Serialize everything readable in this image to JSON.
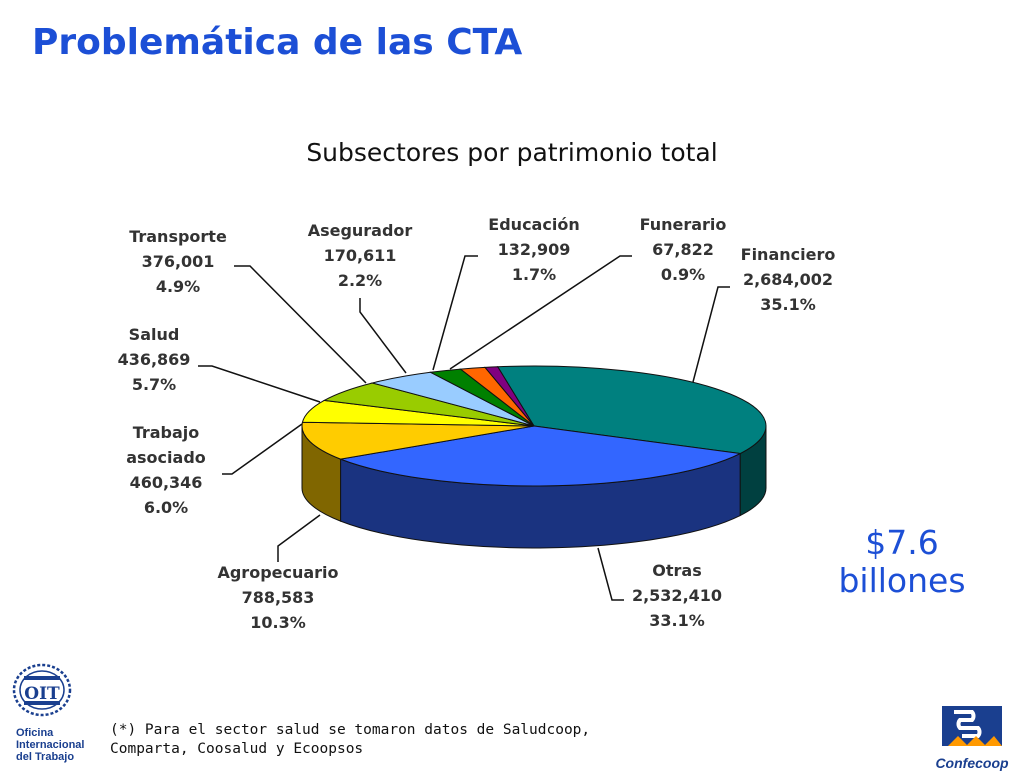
{
  "slide": {
    "title": "Problemática de las CTA",
    "total_value": "$7.6",
    "total_unit": "billones",
    "footnote_line1": "(*) Para el sector salud se tomaron datos de Saludcoop,",
    "footnote_line2": "Comparta, Coosalud y Ecoopsos"
  },
  "logos": {
    "oit_line1": "Oficina",
    "oit_line2": "Internacional",
    "oit_line3": "del Trabajo",
    "oit_mark": "OIT",
    "confecoop_name": "Confecoop"
  },
  "chart_data": {
    "type": "pie",
    "title": "Subsectores por patrimonio total",
    "slices": [
      {
        "label": "Financiero",
        "value": 2684002,
        "value_label": "2,684,002",
        "percent": "35.1%",
        "color": "#00807f"
      },
      {
        "label": "Otras",
        "value": 2532410,
        "value_label": "2,532,410",
        "percent": "33.1%",
        "color": "#3366ff"
      },
      {
        "label": "Agropecuario",
        "value": 788583,
        "value_label": "788,583",
        "percent": "10.3%",
        "color": "#ffcc00"
      },
      {
        "label_lines": [
          "Trabajo",
          "asociado"
        ],
        "value": 460346,
        "value_label": "460,346",
        "percent": "6.0%",
        "color": "#ffff00"
      },
      {
        "label": "Salud",
        "value": 436869,
        "value_label": "436,869",
        "percent": "5.7%",
        "color": "#99cc00"
      },
      {
        "label": "Transporte",
        "value": 376001,
        "value_label": "376,001",
        "percent": "4.9%",
        "color": "#99ccff"
      },
      {
        "label": "Asegurador",
        "value": 170611,
        "value_label": "170,611",
        "percent": "2.2%",
        "color": "#008000"
      },
      {
        "label": "Educación",
        "value": 132909,
        "value_label": "132,909",
        "percent": "1.7%",
        "color": "#ff6600"
      },
      {
        "label": "Funerario",
        "value": 67822,
        "value_label": "67,822",
        "percent": "0.9%",
        "color": "#800080"
      }
    ]
  }
}
